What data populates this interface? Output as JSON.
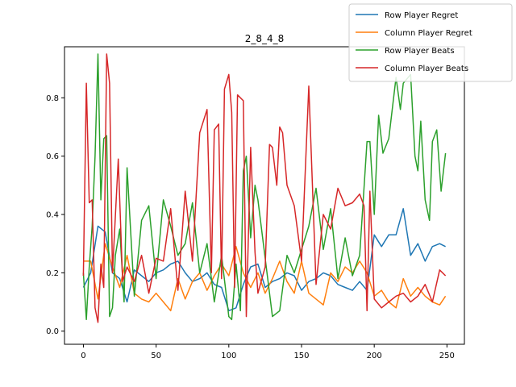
{
  "chart_data": {
    "type": "line",
    "title": "2_8_4_8",
    "xlabel": "",
    "ylabel": "",
    "xlim": [
      -13,
      262
    ],
    "ylim": [
      -0.045,
      0.975
    ],
    "xticks": [
      0,
      50,
      100,
      150,
      200,
      250
    ],
    "yticks": [
      0.0,
      0.2,
      0.4,
      0.6,
      0.8
    ],
    "ytick_labels": [
      "0.0",
      "0.2",
      "0.4",
      "0.6",
      "0.8"
    ],
    "legend_position": "top-right",
    "grid": false,
    "series": [
      {
        "name": "Row Player Regret",
        "color": "#1f77b4",
        "x": [
          0,
          5,
          10,
          15,
          20,
          25,
          30,
          35,
          40,
          45,
          50,
          55,
          60,
          65,
          70,
          75,
          80,
          85,
          90,
          95,
          100,
          105,
          110,
          115,
          120,
          125,
          130,
          135,
          140,
          145,
          150,
          155,
          160,
          165,
          170,
          175,
          180,
          185,
          190,
          195,
          200,
          205,
          210,
          215,
          220,
          225,
          230,
          235,
          240,
          245,
          249
        ],
        "y": [
          0.15,
          0.2,
          0.36,
          0.34,
          0.2,
          0.18,
          0.1,
          0.21,
          0.19,
          0.17,
          0.2,
          0.21,
          0.23,
          0.24,
          0.2,
          0.17,
          0.18,
          0.2,
          0.16,
          0.15,
          0.07,
          0.08,
          0.16,
          0.22,
          0.23,
          0.15,
          0.17,
          0.18,
          0.2,
          0.19,
          0.14,
          0.17,
          0.18,
          0.2,
          0.19,
          0.16,
          0.15,
          0.14,
          0.17,
          0.14,
          0.33,
          0.29,
          0.33,
          0.33,
          0.42,
          0.26,
          0.3,
          0.24,
          0.29,
          0.3,
          0.29
        ]
      },
      {
        "name": "Column Player Regret",
        "color": "#ff7f0e",
        "x": [
          0,
          5,
          10,
          15,
          20,
          25,
          30,
          35,
          40,
          45,
          50,
          55,
          60,
          65,
          70,
          75,
          80,
          85,
          90,
          95,
          100,
          105,
          110,
          115,
          120,
          125,
          130,
          135,
          140,
          145,
          150,
          155,
          160,
          165,
          170,
          175,
          180,
          185,
          190,
          195,
          200,
          205,
          210,
          215,
          220,
          225,
          230,
          235,
          240,
          245,
          249
        ],
        "y": [
          0.24,
          0.24,
          0.11,
          0.3,
          0.22,
          0.15,
          0.26,
          0.13,
          0.11,
          0.1,
          0.13,
          0.1,
          0.07,
          0.18,
          0.11,
          0.17,
          0.2,
          0.14,
          0.19,
          0.23,
          0.19,
          0.29,
          0.2,
          0.15,
          0.2,
          0.13,
          0.18,
          0.24,
          0.17,
          0.13,
          0.24,
          0.13,
          0.11,
          0.09,
          0.2,
          0.17,
          0.22,
          0.2,
          0.24,
          0.2,
          0.12,
          0.14,
          0.1,
          0.08,
          0.18,
          0.12,
          0.15,
          0.12,
          0.1,
          0.09,
          0.12
        ]
      },
      {
        "name": "Row Player Beats",
        "color": "#2ca02c",
        "x": [
          0,
          2,
          4,
          6,
          8,
          10,
          12,
          14,
          16,
          18,
          20,
          22,
          25,
          28,
          30,
          35,
          40,
          45,
          50,
          55,
          60,
          65,
          70,
          75,
          80,
          85,
          90,
          95,
          100,
          102,
          105,
          108,
          110,
          112,
          115,
          118,
          120,
          125,
          130,
          135,
          140,
          145,
          150,
          155,
          160,
          165,
          170,
          175,
          180,
          185,
          190,
          195,
          197,
          200,
          203,
          206,
          210,
          215,
          218,
          220,
          225,
          228,
          230,
          232,
          235,
          238,
          240,
          243,
          246,
          249
        ],
        "y": [
          0.2,
          0.04,
          0.22,
          0.36,
          0.6,
          0.95,
          0.45,
          0.66,
          0.67,
          0.05,
          0.08,
          0.26,
          0.35,
          0.1,
          0.56,
          0.12,
          0.38,
          0.43,
          0.18,
          0.45,
          0.36,
          0.26,
          0.3,
          0.44,
          0.2,
          0.3,
          0.1,
          0.26,
          0.05,
          0.04,
          0.23,
          0.07,
          0.55,
          0.6,
          0.32,
          0.5,
          0.45,
          0.25,
          0.05,
          0.07,
          0.26,
          0.2,
          0.28,
          0.36,
          0.49,
          0.28,
          0.42,
          0.18,
          0.32,
          0.19,
          0.26,
          0.65,
          0.65,
          0.4,
          0.74,
          0.61,
          0.66,
          0.87,
          0.76,
          0.85,
          0.88,
          0.6,
          0.55,
          0.72,
          0.45,
          0.38,
          0.65,
          0.69,
          0.48,
          0.61
        ]
      },
      {
        "name": "Column Player Beats",
        "color": "#d62728",
        "x": [
          0,
          2,
          4,
          6,
          8,
          10,
          12,
          14,
          16,
          18,
          20,
          24,
          27,
          30,
          35,
          40,
          45,
          50,
          55,
          60,
          65,
          70,
          75,
          80,
          85,
          88,
          90,
          93,
          95,
          97,
          100,
          102,
          104,
          106,
          108,
          110,
          112,
          115,
          118,
          120,
          125,
          128,
          130,
          133,
          135,
          137,
          140,
          145,
          150,
          155,
          160,
          165,
          170,
          175,
          180,
          185,
          190,
          193,
          195,
          197,
          200,
          205,
          210,
          215,
          220,
          225,
          230,
          235,
          240,
          245,
          249
        ],
        "y": [
          0.19,
          0.85,
          0.44,
          0.45,
          0.08,
          0.03,
          0.23,
          0.15,
          0.95,
          0.85,
          0.2,
          0.59,
          0.17,
          0.22,
          0.17,
          0.26,
          0.13,
          0.25,
          0.24,
          0.42,
          0.14,
          0.48,
          0.24,
          0.68,
          0.76,
          0.2,
          0.69,
          0.71,
          0.18,
          0.83,
          0.88,
          0.75,
          0.15,
          0.81,
          0.8,
          0.79,
          0.05,
          0.63,
          0.27,
          0.13,
          0.22,
          0.64,
          0.63,
          0.5,
          0.7,
          0.68,
          0.5,
          0.43,
          0.24,
          0.84,
          0.16,
          0.4,
          0.35,
          0.49,
          0.43,
          0.44,
          0.47,
          0.43,
          0.07,
          0.48,
          0.11,
          0.08,
          0.1,
          0.12,
          0.13,
          0.1,
          0.12,
          0.16,
          0.1,
          0.21,
          0.19
        ]
      }
    ]
  }
}
